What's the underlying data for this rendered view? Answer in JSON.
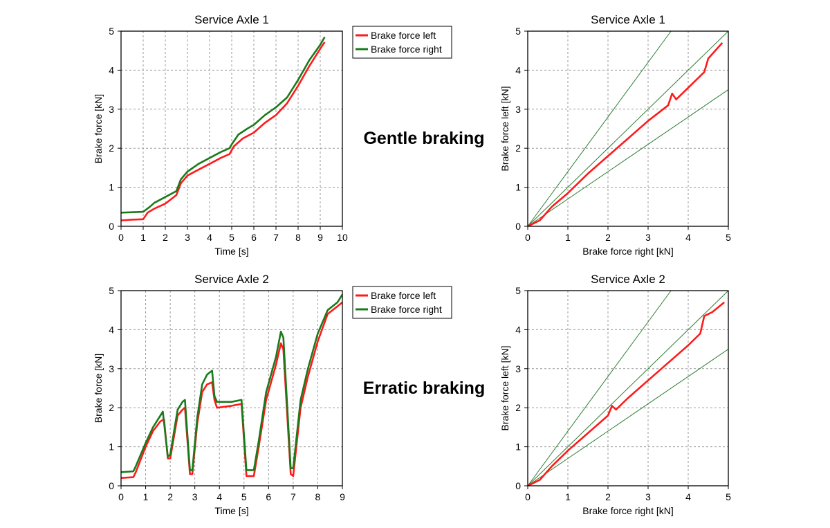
{
  "annotations": {
    "top": "Gentle braking",
    "bottom": "Erratic braking"
  },
  "colors": {
    "left": "#ff1a1a",
    "right": "#1a7a1a",
    "reference": "#2e7d32"
  },
  "chart_data": [
    {
      "id": "tl",
      "type": "line",
      "title": "Service Axle 1",
      "xlabel": "Time [s]",
      "ylabel": "Brake force [kN]",
      "xlim": [
        0,
        10
      ],
      "ylim": [
        0,
        5
      ],
      "xticks": [
        0,
        1,
        2,
        3,
        4,
        5,
        6,
        7,
        8,
        9,
        10
      ],
      "yticks": [
        0,
        1,
        2,
        3,
        4,
        5
      ],
      "legend": "outside-top-right",
      "series": [
        {
          "name": "Brake force left",
          "color": "#ff1a1a",
          "points": [
            [
              0,
              0.15
            ],
            [
              0.5,
              0.17
            ],
            [
              1.0,
              0.18
            ],
            [
              1.2,
              0.35
            ],
            [
              1.5,
              0.45
            ],
            [
              2.0,
              0.58
            ],
            [
              2.5,
              0.8
            ],
            [
              2.7,
              1.1
            ],
            [
              3.0,
              1.3
            ],
            [
              3.5,
              1.45
            ],
            [
              4.0,
              1.6
            ],
            [
              4.5,
              1.75
            ],
            [
              4.9,
              1.85
            ],
            [
              5.1,
              2.05
            ],
            [
              5.5,
              2.25
            ],
            [
              6.0,
              2.4
            ],
            [
              6.5,
              2.65
            ],
            [
              7.0,
              2.85
            ],
            [
              7.5,
              3.15
            ],
            [
              8.0,
              3.6
            ],
            [
              8.5,
              4.1
            ],
            [
              9.0,
              4.55
            ],
            [
              9.2,
              4.72
            ]
          ]
        },
        {
          "name": "Brake force right",
          "color": "#1a7a1a",
          "points": [
            [
              0,
              0.35
            ],
            [
              0.5,
              0.36
            ],
            [
              1.0,
              0.37
            ],
            [
              1.3,
              0.5
            ],
            [
              1.5,
              0.6
            ],
            [
              2.0,
              0.75
            ],
            [
              2.5,
              0.9
            ],
            [
              2.7,
              1.2
            ],
            [
              3.0,
              1.4
            ],
            [
              3.5,
              1.6
            ],
            [
              4.0,
              1.75
            ],
            [
              4.5,
              1.9
            ],
            [
              4.9,
              2.0
            ],
            [
              5.0,
              2.1
            ],
            [
              5.3,
              2.35
            ],
            [
              5.7,
              2.5
            ],
            [
              6.0,
              2.6
            ],
            [
              6.5,
              2.85
            ],
            [
              7.0,
              3.05
            ],
            [
              7.5,
              3.3
            ],
            [
              8.0,
              3.75
            ],
            [
              8.5,
              4.25
            ],
            [
              9.0,
              4.65
            ],
            [
              9.2,
              4.85
            ]
          ]
        }
      ]
    },
    {
      "id": "tr",
      "type": "scatter",
      "title": "Service Axle 1",
      "xlabel": "Brake force right [kN]",
      "ylabel": "Brake force left [kN]",
      "xlim": [
        0,
        5
      ],
      "ylim": [
        0,
        5
      ],
      "xticks": [
        0,
        1,
        2,
        3,
        4,
        5
      ],
      "yticks": [
        0,
        1,
        2,
        3,
        4,
        5
      ],
      "reference_slopes": [
        1.4,
        1.0,
        0.7
      ],
      "series": [
        {
          "name": "Brake force left",
          "color": "#ff1a1a",
          "points": [
            [
              0,
              0
            ],
            [
              0.3,
              0.15
            ],
            [
              0.6,
              0.5
            ],
            [
              1.0,
              0.85
            ],
            [
              1.5,
              1.35
            ],
            [
              2.0,
              1.8
            ],
            [
              2.5,
              2.25
            ],
            [
              3.0,
              2.7
            ],
            [
              3.5,
              3.1
            ],
            [
              3.6,
              3.4
            ],
            [
              3.7,
              3.25
            ],
            [
              4.0,
              3.55
            ],
            [
              4.4,
              3.95
            ],
            [
              4.5,
              4.3
            ],
            [
              4.85,
              4.7
            ]
          ]
        }
      ]
    },
    {
      "id": "bl",
      "type": "line",
      "title": "Service Axle 2",
      "xlabel": "Time [s]",
      "ylabel": "Brake force [kN]",
      "xlim": [
        0,
        9
      ],
      "ylim": [
        0,
        5
      ],
      "xticks": [
        0,
        1,
        2,
        3,
        4,
        5,
        6,
        7,
        8,
        9
      ],
      "yticks": [
        0,
        1,
        2,
        3,
        4,
        5
      ],
      "legend": "outside-top-right",
      "series": [
        {
          "name": "Brake force left",
          "color": "#ff1a1a",
          "points": [
            [
              0,
              0.2
            ],
            [
              0.5,
              0.22
            ],
            [
              0.6,
              0.35
            ],
            [
              1.0,
              1.0
            ],
            [
              1.3,
              1.4
            ],
            [
              1.6,
              1.65
            ],
            [
              1.75,
              1.7
            ],
            [
              1.9,
              0.7
            ],
            [
              2.0,
              0.7
            ],
            [
              2.3,
              1.8
            ],
            [
              2.5,
              1.95
            ],
            [
              2.6,
              2.0
            ],
            [
              2.8,
              0.3
            ],
            [
              2.9,
              0.3
            ],
            [
              3.1,
              1.6
            ],
            [
              3.3,
              2.4
            ],
            [
              3.5,
              2.6
            ],
            [
              3.7,
              2.65
            ],
            [
              3.8,
              2.2
            ],
            [
              3.9,
              2.0
            ],
            [
              4.5,
              2.05
            ],
            [
              4.9,
              2.1
            ],
            [
              5.1,
              0.25
            ],
            [
              5.4,
              0.25
            ],
            [
              5.6,
              1.0
            ],
            [
              5.9,
              2.2
            ],
            [
              6.3,
              3.1
            ],
            [
              6.5,
              3.65
            ],
            [
              6.6,
              3.5
            ],
            [
              6.9,
              0.3
            ],
            [
              7.0,
              0.25
            ],
            [
              7.3,
              2.0
            ],
            [
              7.6,
              2.8
            ],
            [
              8.0,
              3.7
            ],
            [
              8.4,
              4.4
            ],
            [
              8.8,
              4.6
            ],
            [
              9.0,
              4.7
            ]
          ]
        },
        {
          "name": "Brake force right",
          "color": "#1a7a1a",
          "points": [
            [
              0,
              0.35
            ],
            [
              0.5,
              0.37
            ],
            [
              0.6,
              0.5
            ],
            [
              1.0,
              1.1
            ],
            [
              1.3,
              1.5
            ],
            [
              1.6,
              1.8
            ],
            [
              1.7,
              1.9
            ],
            [
              1.9,
              0.75
            ],
            [
              2.0,
              0.8
            ],
            [
              2.3,
              1.95
            ],
            [
              2.5,
              2.15
            ],
            [
              2.6,
              2.2
            ],
            [
              2.8,
              0.4
            ],
            [
              2.9,
              0.4
            ],
            [
              3.1,
              1.75
            ],
            [
              3.3,
              2.6
            ],
            [
              3.5,
              2.85
            ],
            [
              3.7,
              2.95
            ],
            [
              3.8,
              2.3
            ],
            [
              3.9,
              2.15
            ],
            [
              4.5,
              2.15
            ],
            [
              4.9,
              2.2
            ],
            [
              5.1,
              0.4
            ],
            [
              5.4,
              0.4
            ],
            [
              5.6,
              1.15
            ],
            [
              5.9,
              2.4
            ],
            [
              6.3,
              3.3
            ],
            [
              6.5,
              3.95
            ],
            [
              6.6,
              3.8
            ],
            [
              6.9,
              0.45
            ],
            [
              7.0,
              0.45
            ],
            [
              7.3,
              2.2
            ],
            [
              7.6,
              3.0
            ],
            [
              8.0,
              3.9
            ],
            [
              8.4,
              4.5
            ],
            [
              8.8,
              4.7
            ],
            [
              9.0,
              4.9
            ]
          ]
        }
      ]
    },
    {
      "id": "br",
      "type": "scatter",
      "title": "Service Axle 2",
      "xlabel": "Brake force right [kN]",
      "ylabel": "Brake force left [kN]",
      "xlim": [
        0,
        5
      ],
      "ylim": [
        0,
        5
      ],
      "xticks": [
        0,
        1,
        2,
        3,
        4,
        5
      ],
      "yticks": [
        0,
        1,
        2,
        3,
        4,
        5
      ],
      "reference_slopes": [
        1.4,
        1.0,
        0.7
      ],
      "series": [
        {
          "name": "Brake force left",
          "color": "#ff1a1a",
          "points": [
            [
              0,
              0
            ],
            [
              0.3,
              0.15
            ],
            [
              0.6,
              0.5
            ],
            [
              1.0,
              0.9
            ],
            [
              1.5,
              1.35
            ],
            [
              2.0,
              1.8
            ],
            [
              2.1,
              2.05
            ],
            [
              2.2,
              1.95
            ],
            [
              2.5,
              2.25
            ],
            [
              3.0,
              2.7
            ],
            [
              3.5,
              3.15
            ],
            [
              4.0,
              3.6
            ],
            [
              4.3,
              3.9
            ],
            [
              4.4,
              4.35
            ],
            [
              4.6,
              4.45
            ],
            [
              4.9,
              4.7
            ]
          ]
        }
      ]
    }
  ]
}
